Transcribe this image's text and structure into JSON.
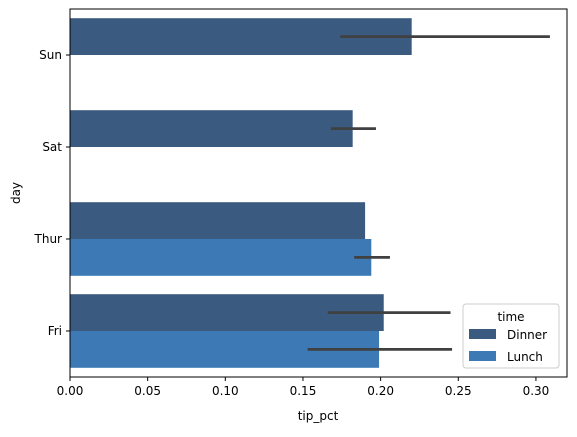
{
  "chart_data": {
    "type": "bar",
    "orientation": "horizontal",
    "title": "",
    "xlabel": "tip_pct",
    "ylabel": "day",
    "categories": [
      "Sun",
      "Sat",
      "Thur",
      "Fri"
    ],
    "xlim": [
      0.0,
      0.32
    ],
    "xticks": [
      0.0,
      0.05,
      0.1,
      0.15,
      0.2,
      0.25,
      0.3
    ],
    "xtick_labels": [
      "0.00",
      "0.05",
      "0.10",
      "0.15",
      "0.20",
      "0.25",
      "0.30"
    ],
    "grid": false,
    "legend": {
      "title": "time",
      "position": "lower-right"
    },
    "series": [
      {
        "name": "Dinner",
        "color": "#3a5a80",
        "values": [
          0.22,
          0.182,
          0.19,
          0.202
        ],
        "ci_low": [
          0.174,
          0.168,
          null,
          0.166
        ],
        "ci_high": [
          0.309,
          0.197,
          null,
          0.245
        ]
      },
      {
        "name": "Lunch",
        "color": "#3c79b5",
        "values": [
          null,
          null,
          0.194,
          0.199
        ],
        "ci_low": [
          null,
          null,
          0.183,
          0.153
        ],
        "ci_high": [
          null,
          null,
          0.206,
          0.246
        ]
      }
    ],
    "errorbar_color": "#404040"
  }
}
